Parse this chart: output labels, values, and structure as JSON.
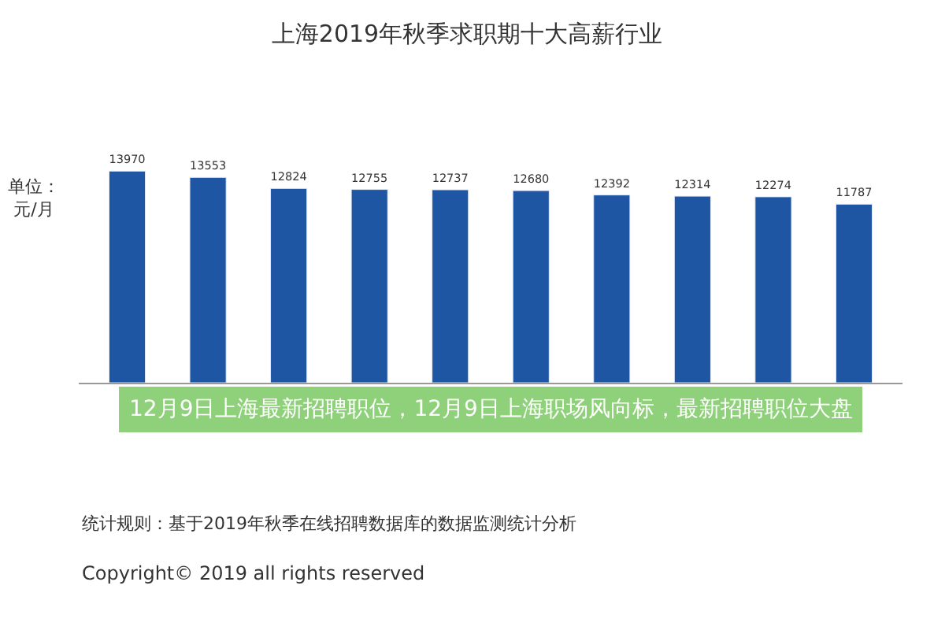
{
  "chart_data": {
    "type": "bar",
    "title": "上海2019年秋季求职期十大高薪行业",
    "ylabel": "单位：元/月",
    "categories": [
      null,
      null,
      null,
      null,
      null,
      null,
      null,
      null,
      null,
      null
    ],
    "values": [
      13970,
      13553,
      12824,
      12755,
      12737,
      12680,
      12392,
      12314,
      12274,
      11787
    ],
    "color": "#1f56a3",
    "data_labels": true,
    "annotations": [
      "12月9日上海最新招聘职位，12月9日上海职场风向标，最新招聘职位大盘",
      "统计规则：基于2019年秋季在线招聘数据库的数据监测统计分析",
      "Copyright© 2019 all rights reserved"
    ]
  }
}
